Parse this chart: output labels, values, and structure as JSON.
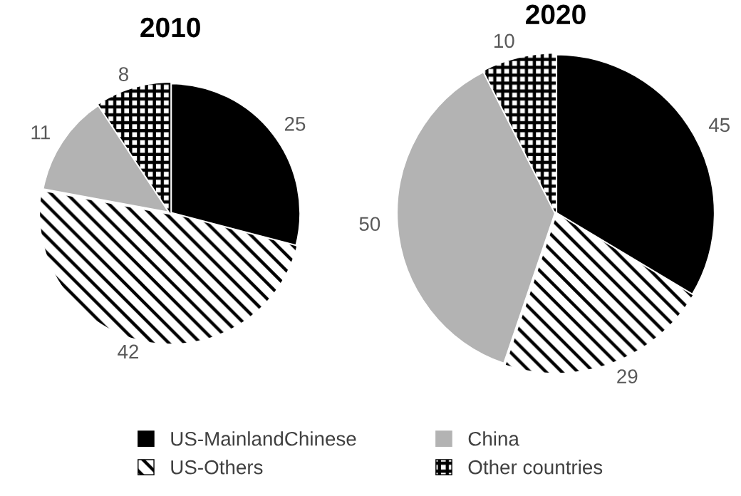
{
  "chart_data": [
    {
      "type": "pie",
      "title": "2010",
      "categories": [
        "US-MainlandChinese",
        "US-Others",
        "China",
        "Other countries"
      ],
      "values": [
        25,
        42,
        11,
        8
      ],
      "colors": [
        "#000000",
        "#ffffff",
        "#b3b3b3",
        "#ffffff"
      ],
      "data_labels": true,
      "legend": "bottom"
    },
    {
      "type": "pie",
      "title": "2020",
      "values": [
        45,
        29,
        50,
        10
      ],
      "colors": [
        "#000000",
        "#ffffff",
        "#b3b3b3",
        "#ffffff"
      ],
      "data_labels": true
    }
  ]
}
